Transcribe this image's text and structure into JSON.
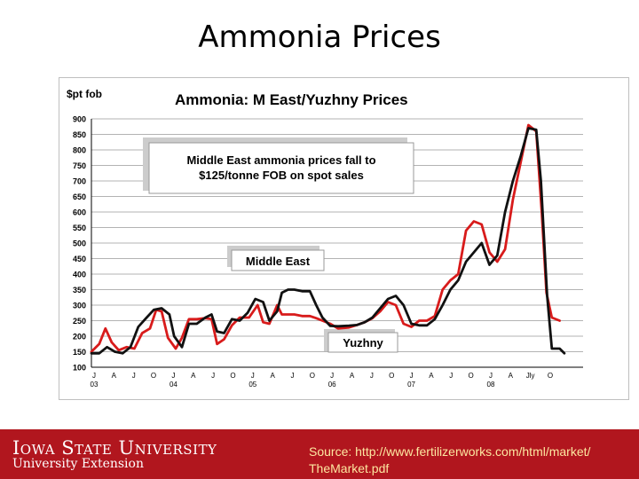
{
  "slide": {
    "title": "Ammonia Prices"
  },
  "footer": {
    "institution": "Iowa State University",
    "unit": "University Extension",
    "source_line1": "Source: http://www.fertilizerworks.com/html/market/",
    "source_line2": "TheMarket.pdf"
  },
  "chart_data": {
    "type": "line",
    "title": "Ammonia: M East/Yuzhny Prices",
    "ylabel": "$pt fob",
    "ylim": [
      100,
      900
    ],
    "yticks": [
      100,
      150,
      200,
      250,
      300,
      350,
      400,
      450,
      500,
      550,
      600,
      650,
      700,
      750,
      800,
      850,
      900
    ],
    "xlim": [
      0,
      63
    ],
    "x_month_labels": [
      "J",
      "A",
      "J",
      "O",
      "J",
      "A",
      "J",
      "O",
      "J",
      "A",
      "J",
      "O",
      "J",
      "A",
      "J",
      "O",
      "J",
      "A",
      "J",
      "O",
      "J",
      "A",
      "Jly",
      "O"
    ],
    "x_year_labels": [
      {
        "label": "03",
        "index": 0
      },
      {
        "label": "04",
        "index": 4
      },
      {
        "label": "05",
        "index": 8
      },
      {
        "label": "06",
        "index": 12
      },
      {
        "label": "07",
        "index": 16
      },
      {
        "label": "08",
        "index": 20
      }
    ],
    "grid": true,
    "annotations": [
      {
        "text_line1": "Middle East ammonia prices fall to",
        "text_line2": "$125/tonne FOB on spot sales"
      },
      {
        "text": "Middle East"
      },
      {
        "text": "Yuzhny"
      }
    ],
    "series": [
      {
        "name": "Middle East",
        "color": "#d81b1b",
        "points": [
          [
            0,
            150
          ],
          [
            1,
            175
          ],
          [
            1.8,
            225
          ],
          [
            2.6,
            180
          ],
          [
            3.5,
            155
          ],
          [
            4.5,
            165
          ],
          [
            5.5,
            160
          ],
          [
            6.5,
            210
          ],
          [
            7.5,
            225
          ],
          [
            8.3,
            285
          ],
          [
            9,
            280
          ],
          [
            9.8,
            195
          ],
          [
            10.8,
            160
          ],
          [
            11.6,
            195
          ],
          [
            12.5,
            255
          ],
          [
            13.5,
            255
          ],
          [
            14.6,
            258
          ],
          [
            15.4,
            255
          ],
          [
            16.1,
            175
          ],
          [
            17,
            190
          ],
          [
            18,
            235
          ],
          [
            19,
            260
          ],
          [
            20.2,
            260
          ],
          [
            21.3,
            300
          ],
          [
            22,
            245
          ],
          [
            22.8,
            240
          ],
          [
            23.8,
            300
          ],
          [
            24.4,
            270
          ],
          [
            25.2,
            270
          ],
          [
            26,
            270
          ],
          [
            27,
            265
          ],
          [
            28,
            265
          ],
          [
            28.8,
            258
          ],
          [
            29.6,
            250
          ],
          [
            30.6,
            240
          ],
          [
            31.6,
            225
          ],
          [
            33,
            228
          ],
          [
            34,
            236
          ],
          [
            35,
            245
          ],
          [
            36,
            258
          ],
          [
            37,
            280
          ],
          [
            38,
            310
          ],
          [
            39,
            300
          ],
          [
            40,
            240
          ],
          [
            41,
            230
          ],
          [
            42,
            250
          ],
          [
            43,
            250
          ],
          [
            44,
            265
          ],
          [
            45,
            350
          ],
          [
            46,
            380
          ],
          [
            47,
            400
          ],
          [
            48,
            540
          ],
          [
            49,
            570
          ],
          [
            50,
            560
          ],
          [
            51,
            470
          ],
          [
            52,
            440
          ],
          [
            53,
            480
          ],
          [
            54,
            640
          ],
          [
            55,
            760
          ],
          [
            56,
            880
          ],
          [
            57,
            860
          ],
          [
            57.7,
            600
          ],
          [
            58.3,
            340
          ],
          [
            59,
            260
          ],
          [
            60,
            250
          ]
        ]
      },
      {
        "name": "Yuzhny",
        "color": "#111111",
        "points": [
          [
            0,
            145
          ],
          [
            1,
            145
          ],
          [
            2,
            165
          ],
          [
            3,
            150
          ],
          [
            4,
            145
          ],
          [
            5,
            165
          ],
          [
            6,
            230
          ],
          [
            7,
            258
          ],
          [
            8,
            285
          ],
          [
            9,
            290
          ],
          [
            10,
            270
          ],
          [
            10.6,
            200
          ],
          [
            11.6,
            165
          ],
          [
            12.5,
            240
          ],
          [
            13.5,
            240
          ],
          [
            14.6,
            260
          ],
          [
            15.4,
            270
          ],
          [
            16.1,
            215
          ],
          [
            17,
            210
          ],
          [
            18,
            255
          ],
          [
            19,
            250
          ],
          [
            20,
            275
          ],
          [
            21,
            320
          ],
          [
            22,
            310
          ],
          [
            22.8,
            250
          ],
          [
            23.8,
            280
          ],
          [
            24.4,
            340
          ],
          [
            25.2,
            350
          ],
          [
            26,
            350
          ],
          [
            27,
            345
          ],
          [
            28,
            345
          ],
          [
            28.8,
            300
          ],
          [
            29.6,
            260
          ],
          [
            30.6,
            233
          ],
          [
            31.6,
            232
          ],
          [
            33,
            234
          ],
          [
            34,
            236
          ],
          [
            35,
            245
          ],
          [
            36,
            260
          ],
          [
            37,
            290
          ],
          [
            38,
            320
          ],
          [
            39,
            330
          ],
          [
            40,
            300
          ],
          [
            41,
            240
          ],
          [
            42,
            235
          ],
          [
            43,
            235
          ],
          [
            44,
            255
          ],
          [
            45,
            300
          ],
          [
            46,
            350
          ],
          [
            47,
            380
          ],
          [
            48,
            440
          ],
          [
            49,
            470
          ],
          [
            50,
            500
          ],
          [
            51,
            430
          ],
          [
            52,
            460
          ],
          [
            53,
            600
          ],
          [
            54,
            700
          ],
          [
            55,
            780
          ],
          [
            56,
            870
          ],
          [
            57,
            865
          ],
          [
            57.6,
            700
          ],
          [
            58.4,
            330
          ],
          [
            59,
            160
          ],
          [
            60,
            160
          ],
          [
            60.6,
            145
          ]
        ]
      }
    ]
  }
}
